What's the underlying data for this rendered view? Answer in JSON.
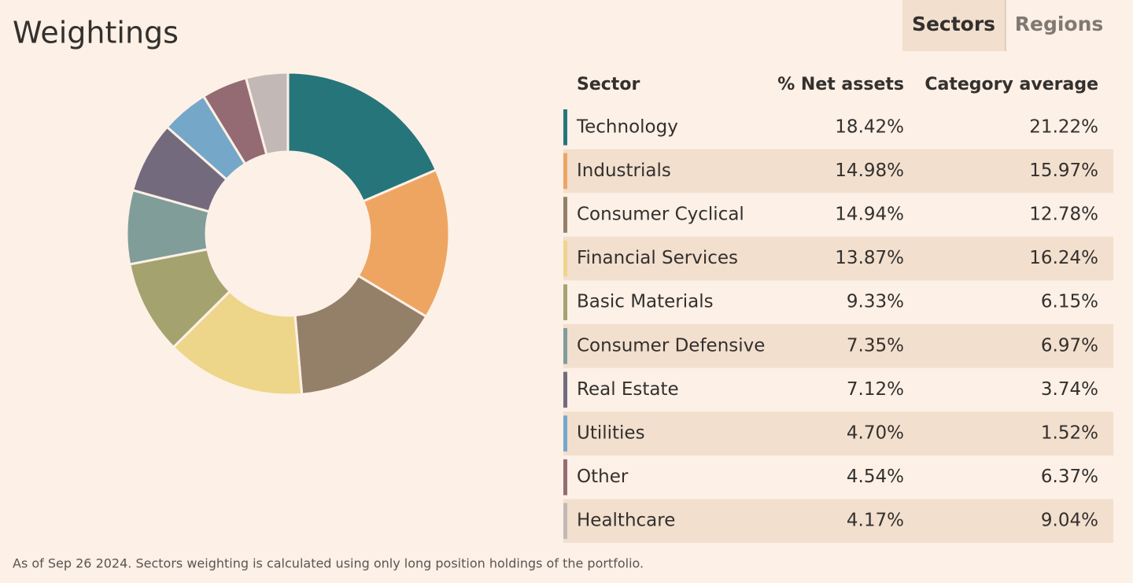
{
  "title": "Weightings",
  "tabs": [
    "Sectors",
    "Regions"
  ],
  "chart_data": {
    "type": "donut",
    "categories": [
      "Technology",
      "Industrials",
      "Consumer Cyclical",
      "Financial Services",
      "Basic Materials",
      "Consumer Defensive",
      "Real Estate",
      "Utilities",
      "Other",
      "Healthcare"
    ],
    "values": [
      18.42,
      14.98,
      14.94,
      13.87,
      9.33,
      7.35,
      7.12,
      4.7,
      4.54,
      4.17
    ],
    "value_labels": [
      "18.42%",
      "14.98%",
      "14.94%",
      "13.87%",
      "9.33%",
      "7.35%",
      "7.12%",
      "4.70%",
      "4.54%",
      "4.17%"
    ],
    "colors": [
      "#26757a",
      "#eea562",
      "#948069",
      "#edd68a",
      "#a4a36f",
      "#809d99",
      "#736b7d",
      "#75a7c8",
      "#946b73",
      "#c2b8b5"
    ]
  },
  "table": {
    "columns": [
      "Sector",
      "% Net assets",
      "Category average"
    ],
    "category_average": [
      "21.22%",
      "15.97%",
      "12.78%",
      "16.24%",
      "6.15%",
      "6.97%",
      "3.74%",
      "1.52%",
      "6.37%",
      "9.04%"
    ]
  },
  "footnote": "As of Sep 26 2024. Sectors weighting is calculated using only long position holdings of the portfolio."
}
